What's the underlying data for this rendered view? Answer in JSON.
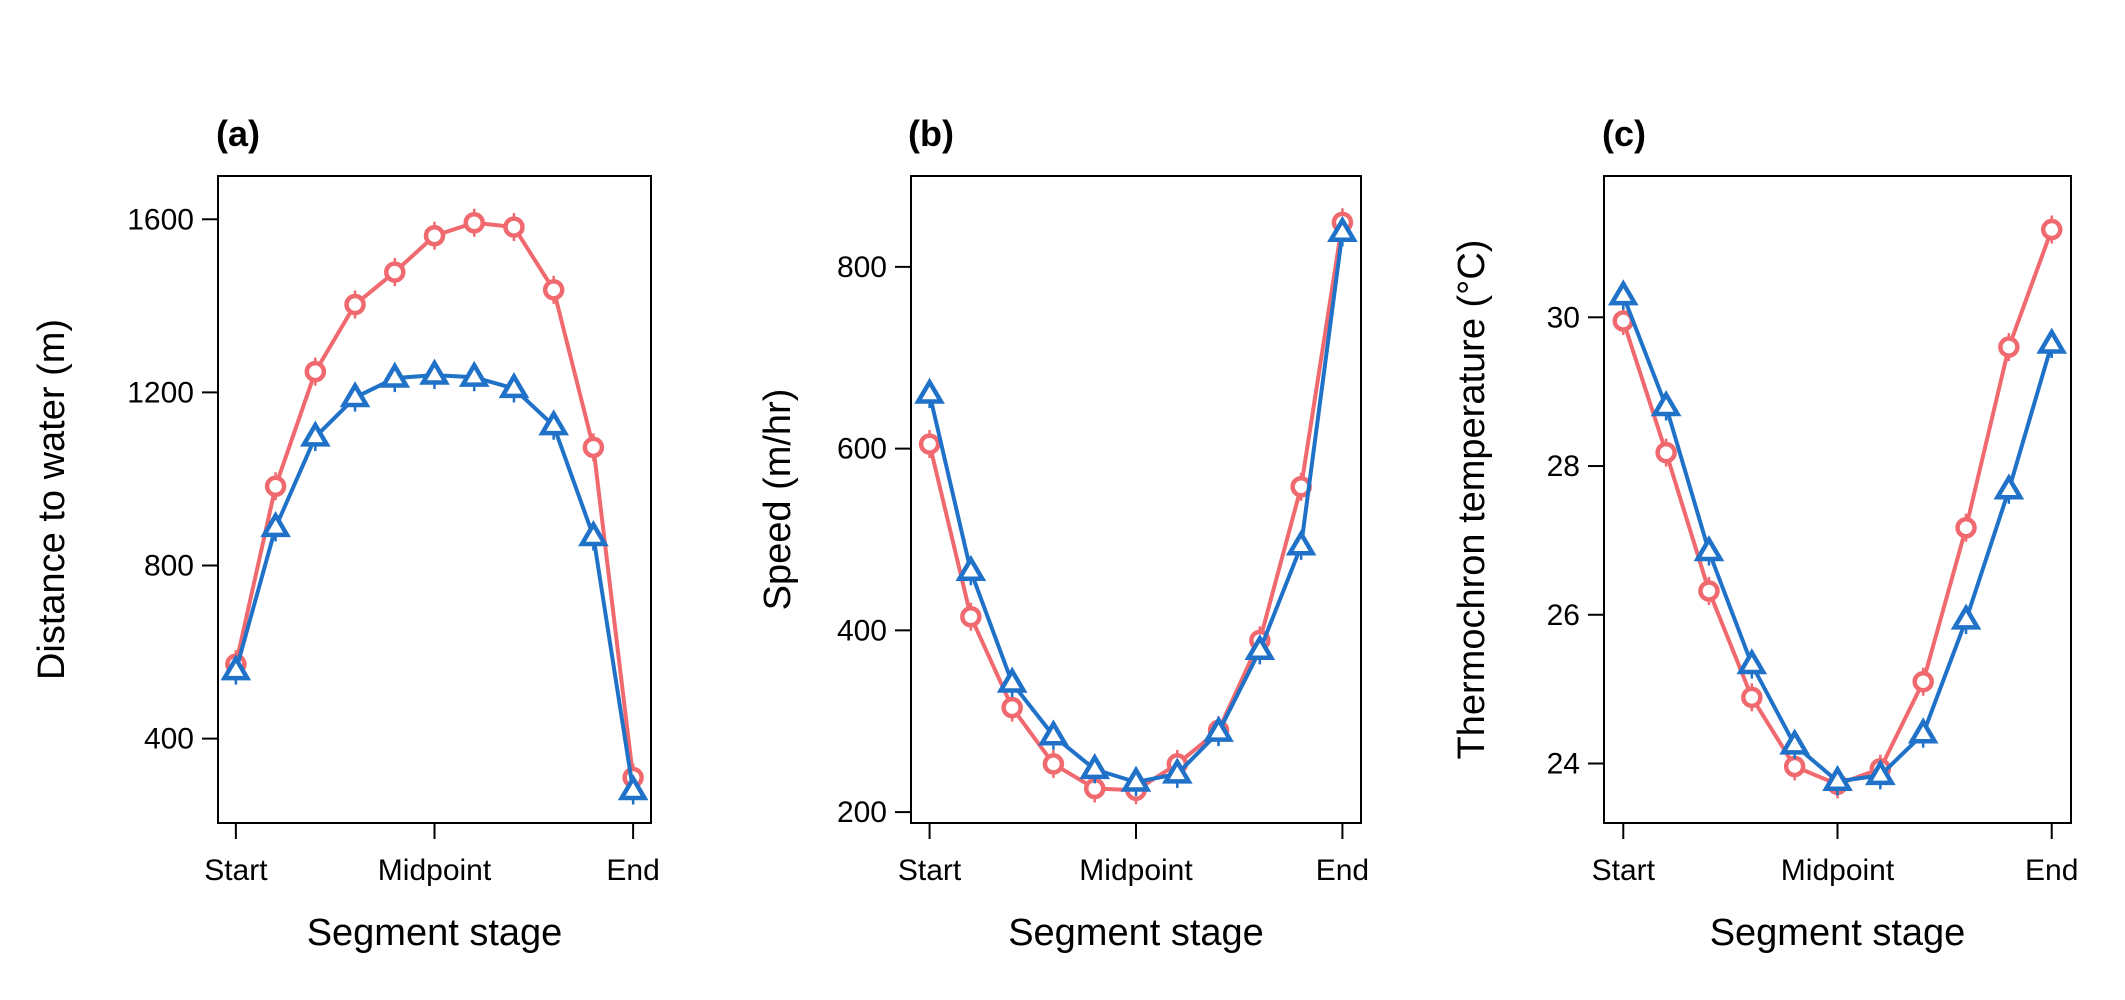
{
  "chart_data": [
    {
      "type": "line",
      "panel": "(a)",
      "xlabel": "Segment stage",
      "ylabel": "Distance to water (m)",
      "x": [
        0,
        1,
        2,
        3,
        4,
        5,
        6,
        7,
        8,
        9,
        10
      ],
      "xticks": [
        {
          "value": 0,
          "label": "Start"
        },
        {
          "value": 5,
          "label": "Midpoint"
        },
        {
          "value": 10,
          "label": "End"
        }
      ],
      "yticks": [
        400,
        800,
        1200,
        1600
      ],
      "xlim": [
        -0.45,
        10.45
      ],
      "ylim": [
        205,
        1700
      ],
      "series": [
        {
          "marker": "circle",
          "color": "#f0696e",
          "values": [
            572,
            983,
            1248,
            1403,
            1478,
            1562,
            1592,
            1582,
            1437,
            1073,
            310
          ]
        },
        {
          "marker": "triangle",
          "color": "#1f72c8",
          "values": [
            557,
            888,
            1097,
            1188,
            1233,
            1240,
            1235,
            1209,
            1123,
            867,
            280
          ]
        }
      ]
    },
    {
      "type": "line",
      "panel": "(b)",
      "xlabel": "Segment stage",
      "ylabel": "Speed (m/hr)",
      "x": [
        0,
        1,
        2,
        3,
        4,
        5,
        6,
        7,
        8,
        9,
        10
      ],
      "xticks": [
        {
          "value": 0,
          "label": "Start"
        },
        {
          "value": 5,
          "label": "Midpoint"
        },
        {
          "value": 10,
          "label": "End"
        }
      ],
      "yticks": [
        200,
        400,
        600,
        800
      ],
      "xlim": [
        -0.45,
        10.45
      ],
      "ylim": [
        188,
        900
      ],
      "series": [
        {
          "marker": "circle",
          "color": "#f0696e",
          "values": [
            605,
            415,
            315,
            253,
            226,
            224,
            253,
            290,
            389,
            558,
            849
          ]
        },
        {
          "marker": "triangle",
          "color": "#1f72c8",
          "values": [
            660,
            465,
            342,
            284,
            247,
            233,
            242,
            288,
            378,
            493,
            838
          ]
        }
      ]
    },
    {
      "type": "line",
      "panel": "(c)",
      "xlabel": "Segment stage",
      "ylabel": "Thermochron temperature (°C)",
      "x": [
        0,
        1,
        2,
        3,
        4,
        5,
        6,
        7,
        8,
        9,
        10
      ],
      "xticks": [
        {
          "value": 0,
          "label": "Start"
        },
        {
          "value": 5,
          "label": "Midpoint"
        },
        {
          "value": 10,
          "label": "End"
        }
      ],
      "yticks": [
        24,
        26,
        28,
        30
      ],
      "xlim": [
        -0.45,
        10.45
      ],
      "ylim": [
        23.2,
        31.9
      ],
      "series": [
        {
          "marker": "circle",
          "color": "#f0696e",
          "values": [
            29.95,
            28.18,
            26.32,
            24.89,
            23.96,
            23.72,
            23.93,
            25.1,
            27.17,
            29.6,
            31.18
          ]
        },
        {
          "marker": "triangle",
          "color": "#1f72c8",
          "values": [
            30.29,
            28.8,
            26.85,
            25.33,
            24.25,
            23.76,
            23.84,
            24.4,
            25.93,
            27.68,
            29.64
          ]
        }
      ]
    }
  ]
}
